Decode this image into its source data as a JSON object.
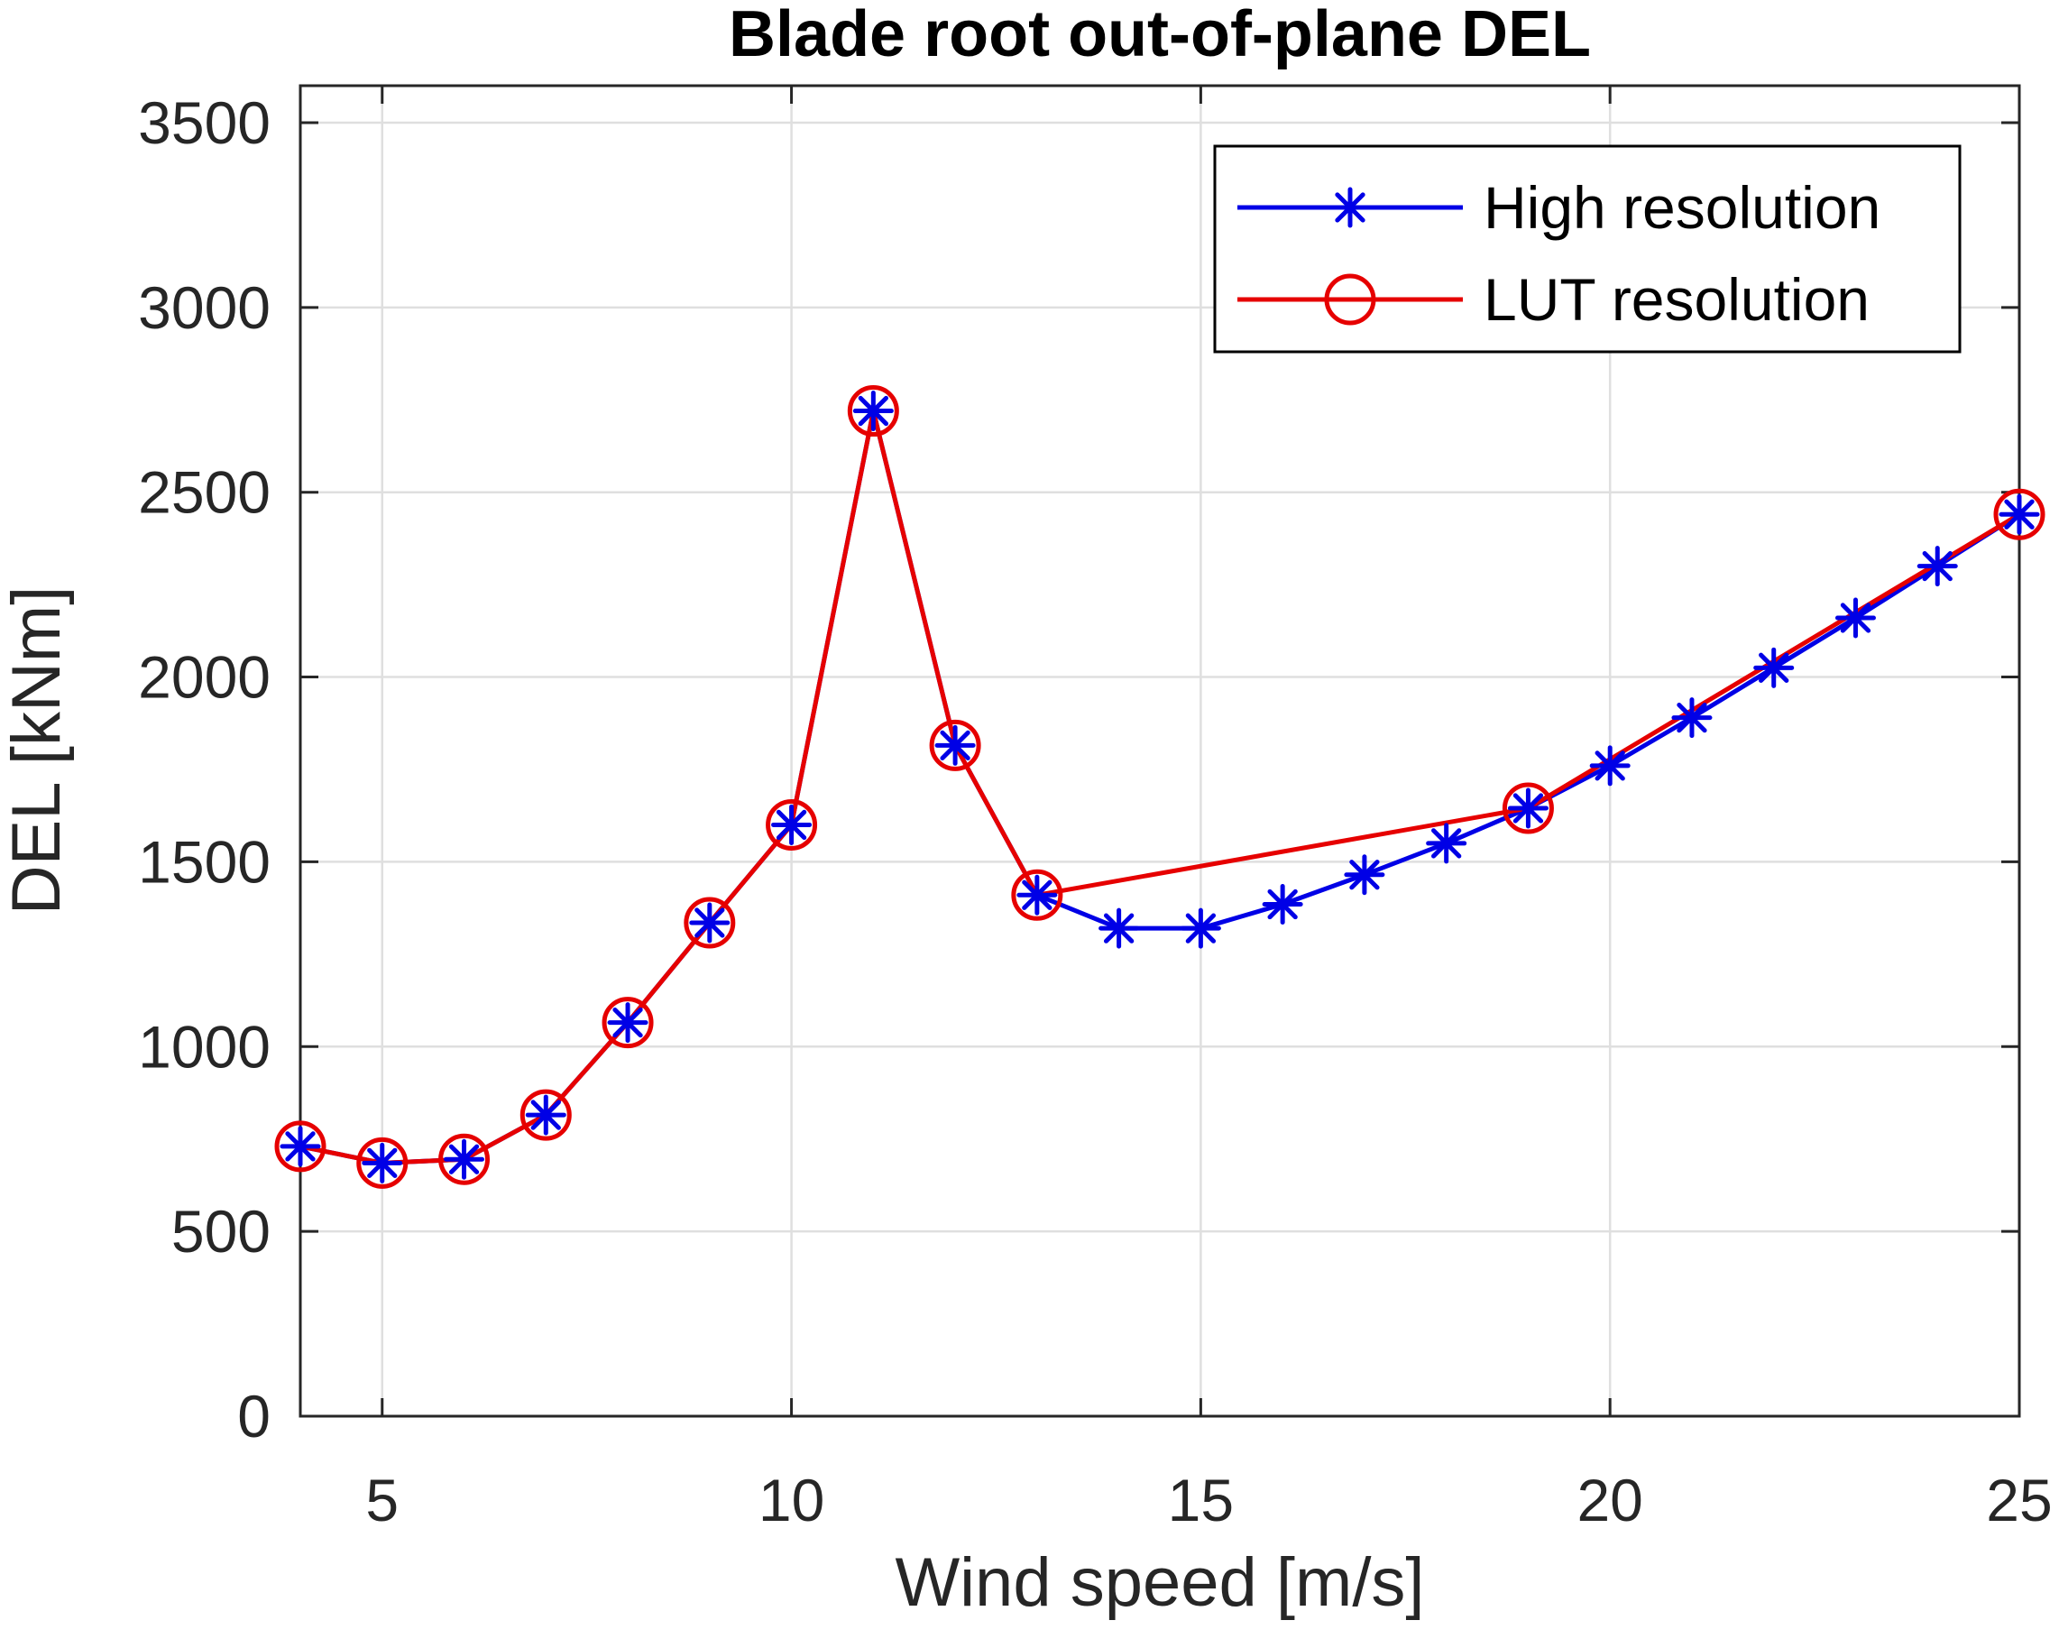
{
  "chart_data": {
    "type": "line",
    "title": "Blade root out-of-plane DEL",
    "xlabel": "Wind speed [m/s]",
    "ylabel": "DEL [kNm]",
    "xlim": [
      4,
      25
    ],
    "ylim": [
      0,
      3600
    ],
    "xticks": [
      5,
      10,
      15,
      20,
      25
    ],
    "xtick_labels": [
      "5",
      "10",
      "15",
      "20",
      "25"
    ],
    "yticks": [
      0,
      500,
      1000,
      1500,
      2000,
      2500,
      3000,
      3500
    ],
    "ytick_labels": [
      "0",
      "500",
      "1000",
      "1500",
      "2000",
      "2500",
      "3000",
      "3500"
    ],
    "grid": true,
    "legend_position": "top-right",
    "series": [
      {
        "name": "High resolution",
        "color": "#0000e6",
        "marker": "asterisk",
        "x": [
          4,
          5,
          6,
          7,
          8,
          9,
          10,
          11,
          12,
          13,
          14,
          15,
          16,
          17,
          18,
          19,
          20,
          21,
          22,
          23,
          24,
          25
        ],
        "values": [
          730,
          685,
          695,
          815,
          1065,
          1335,
          1600,
          2720,
          1815,
          1410,
          1320,
          1320,
          1385,
          1465,
          1550,
          1645,
          1760,
          1890,
          2025,
          2160,
          2300,
          2440
        ]
      },
      {
        "name": "LUT resolution",
        "color": "#e60000",
        "marker": "circle",
        "x": [
          4,
          5,
          6,
          7,
          8,
          9,
          10,
          11,
          12,
          13,
          19,
          25
        ],
        "values": [
          730,
          685,
          695,
          815,
          1065,
          1335,
          1600,
          2720,
          1815,
          1410,
          1645,
          2440
        ]
      }
    ]
  }
}
